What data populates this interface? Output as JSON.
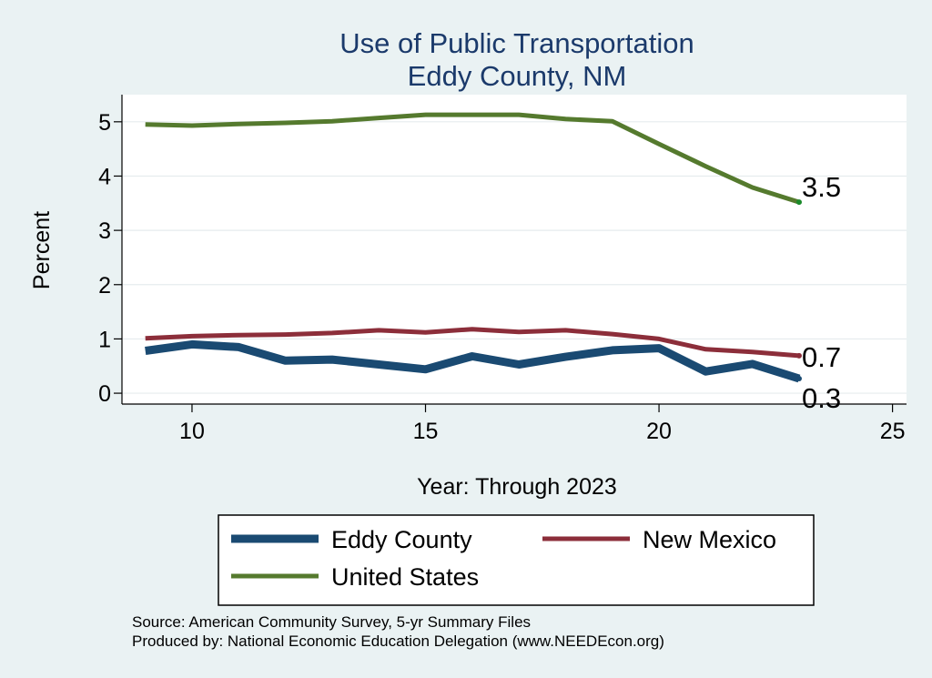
{
  "chart_data": {
    "type": "line",
    "title": [
      "Use of Public Transportation",
      "Eddy County, NM"
    ],
    "xlabel": "Year: Through 2023",
    "ylabel": "Percent",
    "xlim": [
      8.5,
      25.3
    ],
    "ylim": [
      -0.2,
      5.5
    ],
    "xticks": [
      10,
      15,
      20,
      25
    ],
    "yticks": [
      0,
      1,
      2,
      3,
      4,
      5
    ],
    "grid": "horizontal",
    "x": [
      9,
      10,
      11,
      12,
      13,
      14,
      15,
      16,
      17,
      18,
      19,
      20,
      21,
      22,
      23
    ],
    "series": [
      {
        "name": "Eddy County",
        "color": "#1a4a72",
        "values": [
          0.78,
          0.9,
          0.85,
          0.6,
          0.62,
          0.53,
          0.44,
          0.68,
          0.53,
          0.67,
          0.79,
          0.83,
          0.4,
          0.54,
          0.27
        ],
        "end_label": "0.3"
      },
      {
        "name": "New Mexico",
        "color": "#8c2e3a",
        "values": [
          1.01,
          1.05,
          1.07,
          1.08,
          1.11,
          1.16,
          1.12,
          1.18,
          1.13,
          1.16,
          1.09,
          1.0,
          0.81,
          0.76,
          0.69
        ],
        "end_label": "0.7"
      },
      {
        "name": "United States",
        "color": "#557a2e",
        "values": [
          4.95,
          4.93,
          4.96,
          4.98,
          5.01,
          5.07,
          5.13,
          5.13,
          5.13,
          5.05,
          5.01,
          4.59,
          4.18,
          3.79,
          3.52
        ],
        "end_label": "3.5"
      }
    ],
    "legend": {
      "position": "bottom",
      "columns": 2
    },
    "notes": [
      "Source: American Community Survey, 5-yr Summary Files",
      "Produced by: National Economic Education Delegation (www.NEEDEcon.org)"
    ]
  }
}
